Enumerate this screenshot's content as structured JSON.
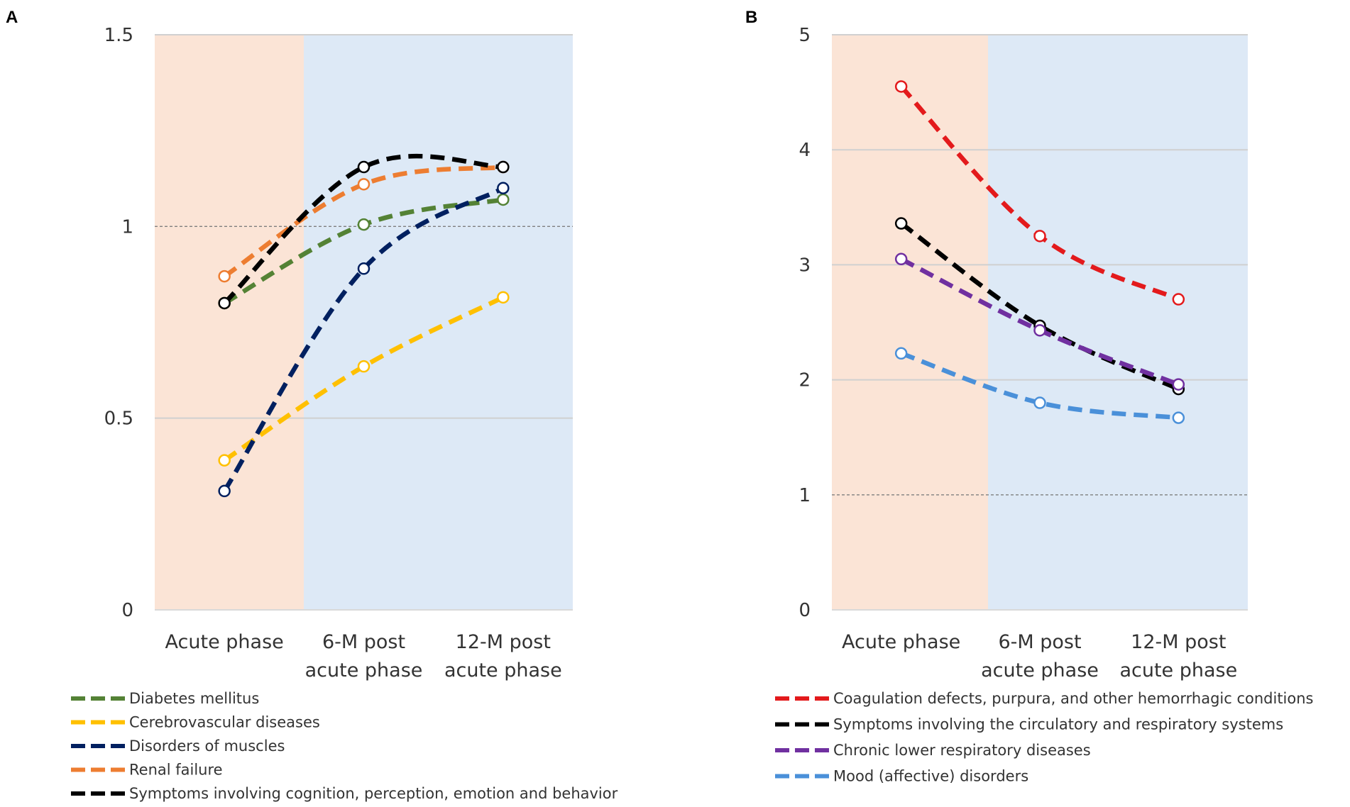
{
  "chart_data": [
    {
      "panel": "A",
      "type": "line",
      "categories": [
        [
          "Acute phase"
        ],
        [
          "6-M post",
          "acute phase"
        ],
        [
          "12-M post",
          "acute phase"
        ]
      ],
      "ylim": [
        0,
        1.5
      ],
      "yticks": [
        "0",
        "0.5",
        "1",
        "1.5"
      ],
      "reference_line": 1,
      "phase_colors": {
        "acute": "#fbe4d6",
        "post": "#dde9f6"
      },
      "series": [
        {
          "name": "Diabetes mellitus",
          "color": "#548235",
          "values": [
            0.8,
            1.005,
            1.07
          ]
        },
        {
          "name": "Cerebrovascular diseases",
          "color": "#ffc000",
          "values": [
            0.39,
            0.635,
            0.815
          ]
        },
        {
          "name": "Disorders of muscles",
          "color": "#002060",
          "values": [
            0.31,
            0.89,
            1.1
          ]
        },
        {
          "name": "Renal failure",
          "color": "#ed7d31",
          "values": [
            0.87,
            1.11,
            1.155
          ]
        },
        {
          "name": "Symptoms involving cognition, perception, emotion and behavior",
          "color": "#000000",
          "values": [
            0.8,
            1.155,
            1.155
          ]
        }
      ]
    },
    {
      "panel": "B",
      "type": "line",
      "categories": [
        [
          "Acute phase"
        ],
        [
          "6-M post",
          "acute phase"
        ],
        [
          "12-M post",
          "acute phase"
        ]
      ],
      "ylim": [
        0,
        5
      ],
      "yticks": [
        "0",
        "1",
        "2",
        "3",
        "4",
        "5"
      ],
      "reference_line": 1,
      "phase_colors": {
        "acute": "#fbe4d6",
        "post": "#dde9f6"
      },
      "series": [
        {
          "name": "Coagulation defects, purpura, and other hemorrhagic conditions",
          "color": "#e31a1c",
          "values": [
            4.55,
            3.25,
            2.7
          ]
        },
        {
          "name": "Symptoms involving the circulatory and respiratory systems",
          "color": "#000000",
          "values": [
            3.36,
            2.47,
            1.92
          ]
        },
        {
          "name": "Chronic lower respiratory diseases",
          "color": "#7030a0",
          "values": [
            3.05,
            2.43,
            1.96
          ]
        },
        {
          "name": "Mood (affective) disorders",
          "color": "#4a90d9",
          "values": [
            2.23,
            1.8,
            1.67
          ]
        }
      ]
    }
  ]
}
